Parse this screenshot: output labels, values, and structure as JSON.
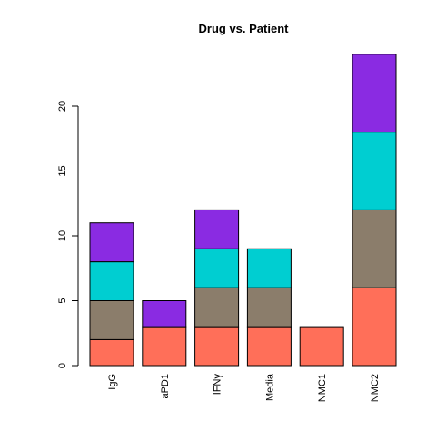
{
  "chart_data": {
    "type": "bar",
    "stacked": true,
    "title": "Drug vs. Patient",
    "xlabel": "",
    "ylabel": "",
    "categories": [
      "IgG",
      "aPD1",
      "IFNγ",
      "Media",
      "NMC1",
      "NMC2"
    ],
    "series": [
      {
        "color": "#FF6F59",
        "values": [
          2,
          3,
          3,
          3,
          3,
          6
        ]
      },
      {
        "color": "#8B7D6B",
        "values": [
          3,
          0,
          3,
          3,
          0,
          6
        ]
      },
      {
        "color": "#00CED1",
        "values": [
          3,
          0,
          3,
          3,
          0,
          6
        ]
      },
      {
        "color": "#8A2BE2",
        "values": [
          3,
          2,
          3,
          0,
          0,
          6
        ]
      }
    ],
    "ylim": [
      0,
      24
    ],
    "yticks": [
      0,
      5,
      10,
      15,
      20
    ],
    "grid": false,
    "legend": "none"
  }
}
